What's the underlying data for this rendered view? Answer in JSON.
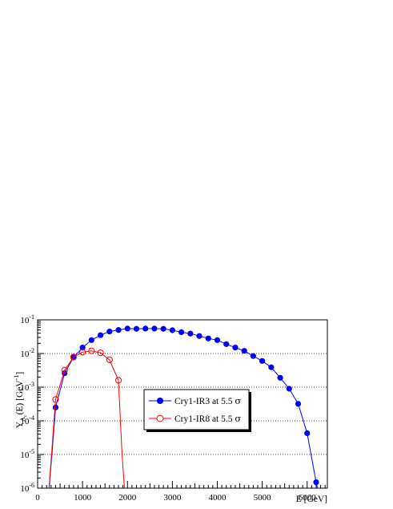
{
  "chart_data": {
    "type": "line",
    "xlabel": "E [GeV]",
    "ylabel": "Y",
    "ylabel_sub": "A",
    "ylabel_subsub": "c",
    "ylabel_tail": "(E) [GeV",
    "ylabel_sup": "-1",
    "ylabel_end": "]",
    "x_scale": "linear",
    "y_scale": "log",
    "xlim": [
      0,
      6450
    ],
    "ylim": [
      1e-06,
      0.1
    ],
    "x_ticks": [
      0,
      1000,
      2000,
      3000,
      4000,
      5000,
      6000
    ],
    "y_ticks": [
      {
        "value": 0.1,
        "base": "10",
        "exp": "-1"
      },
      {
        "value": 0.01,
        "base": "10",
        "exp": "-2"
      },
      {
        "value": 0.001,
        "base": "10",
        "exp": "-3"
      },
      {
        "value": 0.0001,
        "base": "10",
        "exp": "-4"
      },
      {
        "value": 1e-05,
        "base": "10",
        "exp": "-5"
      },
      {
        "value": 1e-06,
        "base": "10",
        "exp": "-6"
      }
    ],
    "grid": "horizontal dotted at decades",
    "legend_position": "center-right",
    "series": [
      {
        "name": "Cry1-IR3 at 5.5 σ",
        "legend_main": "Cry1-IR3 at 5.5 ",
        "legend_sigma": "σ",
        "color": "#0000ff",
        "marker": "filled-circle",
        "x": [
          200,
          400,
          600,
          800,
          1000,
          1200,
          1400,
          1600,
          1800,
          2000,
          2200,
          2400,
          2600,
          2800,
          3000,
          3200,
          3400,
          3600,
          3800,
          4000,
          4200,
          4400,
          4600,
          4800,
          5000,
          5200,
          5400,
          5600,
          5800,
          6000,
          6200,
          6280
        ],
        "y": [
          1e-07,
          0.00025,
          0.0026,
          0.0077,
          0.015,
          0.025,
          0.035,
          0.045,
          0.05,
          0.055,
          0.054,
          0.055,
          0.055,
          0.054,
          0.049,
          0.043,
          0.039,
          0.033,
          0.028,
          0.025,
          0.019,
          0.015,
          0.012,
          0.0084,
          0.006,
          0.0039,
          0.0019,
          0.0009,
          0.00032,
          4.3e-05,
          1.5e-06,
          5e-07
        ],
        "marker_mask": [
          false,
          true,
          true,
          true,
          true,
          true,
          true,
          true,
          true,
          true,
          true,
          true,
          true,
          true,
          true,
          true,
          true,
          true,
          true,
          true,
          true,
          true,
          true,
          true,
          true,
          true,
          true,
          true,
          true,
          true,
          true,
          false
        ]
      },
      {
        "name": "Cry1-IR8 at 5.5 σ",
        "legend_main": "Cry1-IR8 at 5.5 ",
        "legend_sigma": "σ",
        "color": "#ff0000",
        "marker": "open-circle",
        "x": [
          200,
          400,
          600,
          800,
          1000,
          1200,
          1400,
          1600,
          1800,
          1880,
          1950
        ],
        "y": [
          1e-07,
          0.00043,
          0.0032,
          0.0078,
          0.011,
          0.012,
          0.0105,
          0.0065,
          0.0016,
          1e-05,
          5e-07
        ],
        "marker_mask": [
          false,
          true,
          true,
          true,
          true,
          true,
          true,
          true,
          true,
          false,
          false
        ]
      }
    ]
  }
}
